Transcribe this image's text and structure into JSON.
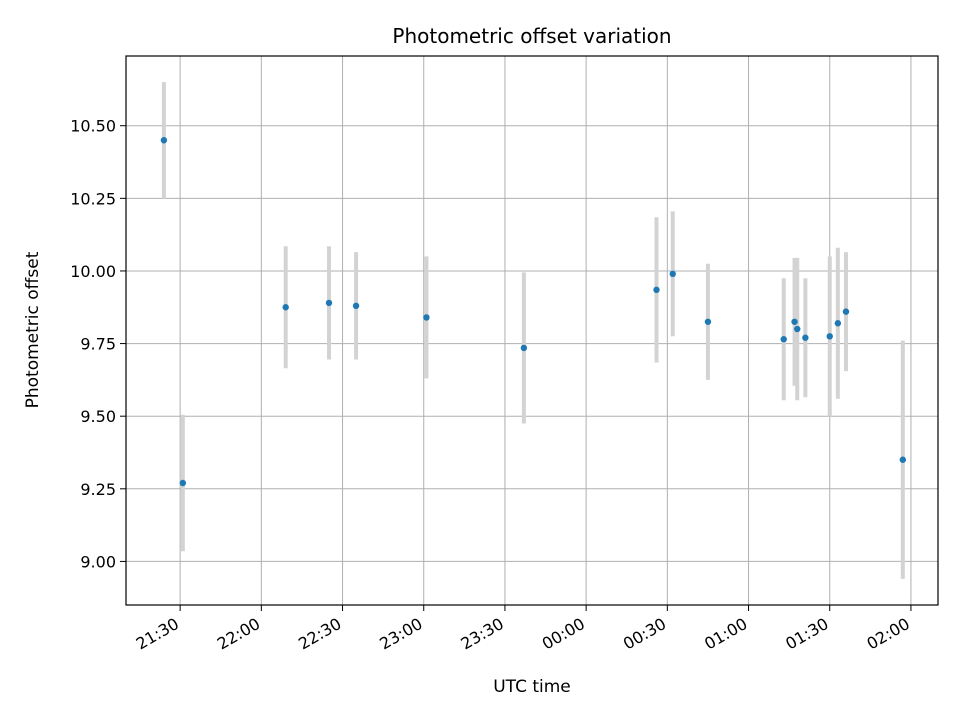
{
  "chart_data": {
    "type": "scatter",
    "title": "Photometric offset variation",
    "xlabel": "UTC time",
    "ylabel": "Photometric offset",
    "x_unit": "UTC time of day (the axis rolls past midnight)",
    "xlim": [
      "21:10",
      "02:10"
    ],
    "ylim": [
      8.85,
      10.74
    ],
    "x_ticks": [
      "21:30",
      "22:00",
      "22:30",
      "23:00",
      "23:30",
      "00:00",
      "00:30",
      "01:00",
      "01:30",
      "02:00"
    ],
    "y_ticks": [
      "9.00",
      "9.25",
      "9.50",
      "9.75",
      "10.00",
      "10.25",
      "10.50"
    ],
    "y_tick_values": [
      9.0,
      9.25,
      9.5,
      9.75,
      10.0,
      10.25,
      10.5
    ],
    "grid": true,
    "marker_color": "#1f77b4",
    "errorbar_color": "#d3d3d3",
    "series": [
      {
        "points": [
          {
            "x": "21:24",
            "y": 10.45,
            "err": 0.2
          },
          {
            "x": "21:31",
            "y": 9.27,
            "err": 0.235
          },
          {
            "x": "22:09",
            "y": 9.875,
            "err": 0.21
          },
          {
            "x": "22:25",
            "y": 9.89,
            "err": 0.195
          },
          {
            "x": "22:35",
            "y": 9.88,
            "err": 0.185
          },
          {
            "x": "23:01",
            "y": 9.84,
            "err": 0.21
          },
          {
            "x": "23:37",
            "y": 9.735,
            "err": 0.26
          },
          {
            "x": "00:26",
            "y": 9.935,
            "err": 0.25
          },
          {
            "x": "00:32",
            "y": 9.99,
            "err": 0.215
          },
          {
            "x": "00:45",
            "y": 9.825,
            "err": 0.2
          },
          {
            "x": "01:13",
            "y": 9.765,
            "err": 0.21
          },
          {
            "x": "01:17",
            "y": 9.825,
            "err": 0.22
          },
          {
            "x": "01:18",
            "y": 9.8,
            "err": 0.245
          },
          {
            "x": "01:21",
            "y": 9.77,
            "err": 0.205
          },
          {
            "x": "01:30",
            "y": 9.775,
            "err": 0.275
          },
          {
            "x": "01:33",
            "y": 9.82,
            "err": 0.26
          },
          {
            "x": "01:36",
            "y": 9.86,
            "err": 0.205
          },
          {
            "x": "01:57",
            "y": 9.35,
            "err": 0.41
          }
        ]
      }
    ]
  }
}
